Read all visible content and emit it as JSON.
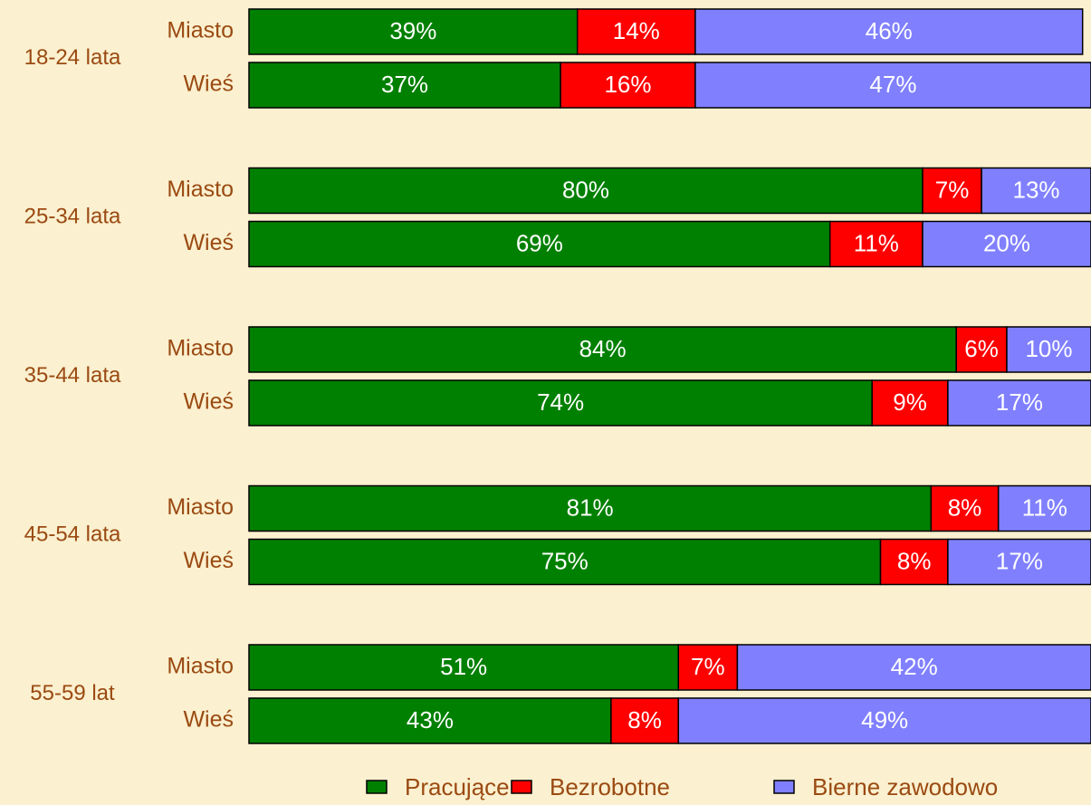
{
  "chart_data": {
    "type": "stacked-bar",
    "orientation": "horizontal",
    "groups": [
      "18-24 lata",
      "25-34 lata",
      "35-44 lata",
      "45-54 lata",
      "55-59 lat"
    ],
    "categories": [
      "Miasto",
      "Wieś",
      "Miasto",
      "Wieś",
      "Miasto",
      "Wieś",
      "Miasto",
      "Wieś",
      "Miasto",
      "Wieś"
    ],
    "xlim": [
      0,
      100
    ],
    "legend": "bottom",
    "series": [
      {
        "name": "Pracujące",
        "color": "#008000",
        "values": [
          39,
          37,
          80,
          69,
          84,
          74,
          81,
          75,
          51,
          43
        ],
        "value_labels": [
          "39%",
          "37%",
          "80%",
          "69%",
          "84%",
          "74%",
          "81%",
          "75%",
          "51%",
          "43%"
        ]
      },
      {
        "name": "Bezrobotne",
        "color": "#ff0000",
        "values": [
          14,
          16,
          7,
          11,
          6,
          9,
          8,
          8,
          7,
          8
        ],
        "value_labels": [
          "14%",
          "16%",
          "7%",
          "11%",
          "6%",
          "9%",
          "8%",
          "8%",
          "7%",
          "8%"
        ]
      },
      {
        "name": "Bierne zawodowo",
        "color": "#8080ff",
        "values": [
          46,
          47,
          13,
          20,
          10,
          17,
          11,
          17,
          42,
          49
        ],
        "value_labels": [
          "46%",
          "47%",
          "13%",
          "20%",
          "10%",
          "17%",
          "11%",
          "17%",
          "42%",
          "49%"
        ]
      }
    ]
  }
}
